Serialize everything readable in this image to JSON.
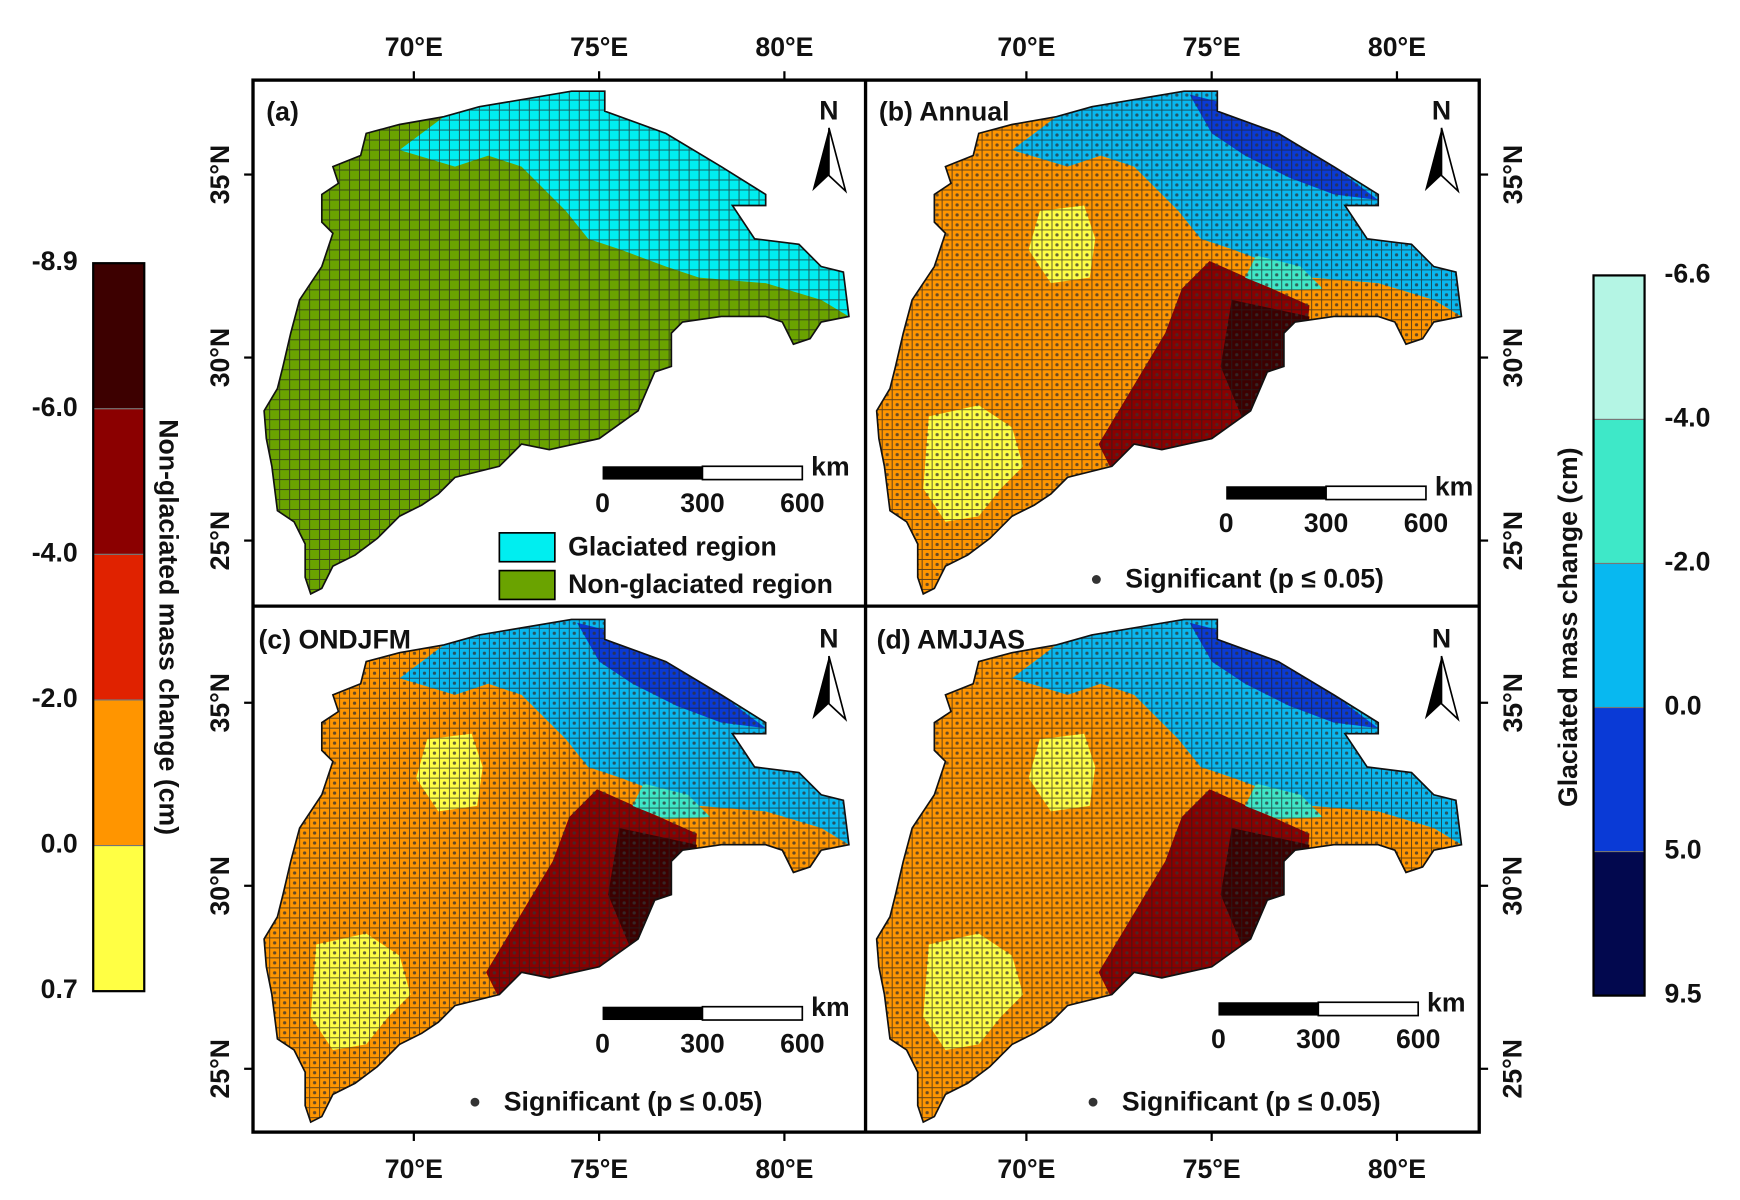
{
  "axes": {
    "lon_range": [
      65.66,
      82.19
    ],
    "lat_range": [
      23.24,
      37.58
    ],
    "lon_ticks": [
      {
        "value": 70,
        "label": "70°E"
      },
      {
        "value": 75,
        "label": "75°E"
      },
      {
        "value": 80,
        "label": "80°E"
      }
    ],
    "lat_ticks": [
      {
        "value": 35,
        "label": "35°N"
      },
      {
        "value": 30,
        "label": "30°N"
      },
      {
        "value": 25,
        "label": "25°N"
      }
    ]
  },
  "panels": [
    {
      "label": "(a)",
      "north": "N",
      "scale_bar": {
        "unit": "km",
        "ticks": [
          0,
          300,
          600
        ]
      },
      "legend": [
        {
          "label": "Glaciated region",
          "color": "#00eef0"
        },
        {
          "label": "Non-glaciated region",
          "color": "#6aa300"
        }
      ]
    },
    {
      "label": "(b) Annual",
      "north": "N",
      "scale_bar": {
        "unit": "km",
        "ticks": [
          0,
          300,
          600
        ]
      },
      "significance": "Significant (p ≤ 0.05)"
    },
    {
      "label": "(c) ONDJFM",
      "north": "N",
      "scale_bar": {
        "unit": "km",
        "ticks": [
          0,
          300,
          600
        ]
      },
      "significance": "Significant (p ≤ 0.05)"
    },
    {
      "label": "(d) AMJJAS",
      "north": "N",
      "scale_bar": {
        "unit": "km",
        "ticks": [
          0,
          300,
          600
        ]
      },
      "significance": "Significant (p ≤ 0.05)"
    }
  ],
  "colorbars": [
    {
      "title": "Non-glaciated mass change (cm)",
      "ticks": [
        {
          "value": -8.9,
          "label": "-8.9"
        },
        {
          "value": -6.0,
          "label": "-6.0"
        },
        {
          "value": -4.0,
          "label": "-4.0"
        },
        {
          "value": -2.0,
          "label": "-2.0"
        },
        {
          "value": 0.0,
          "label": "0.0"
        },
        {
          "value": 0.7,
          "label": "0.7"
        }
      ],
      "colors": [
        "#3d0000",
        "#8b0000",
        "#e02200",
        "#ff9500",
        "#ffff44"
      ]
    },
    {
      "title": "Glaciated mass change (cm)",
      "ticks": [
        {
          "value": -6.6,
          "label": "-6.6"
        },
        {
          "value": -4.0,
          "label": "-4.0"
        },
        {
          "value": -2.0,
          "label": "-2.0"
        },
        {
          "value": 0.0,
          "label": "0.0"
        },
        {
          "value": 5.0,
          "label": "5.0"
        },
        {
          "value": 9.5,
          "label": "9.5"
        }
      ],
      "colors": [
        "#b4f5e4",
        "#3ee8c8",
        "#08b8f0",
        "#0a3ad6",
        "#02084e"
      ]
    }
  ]
}
